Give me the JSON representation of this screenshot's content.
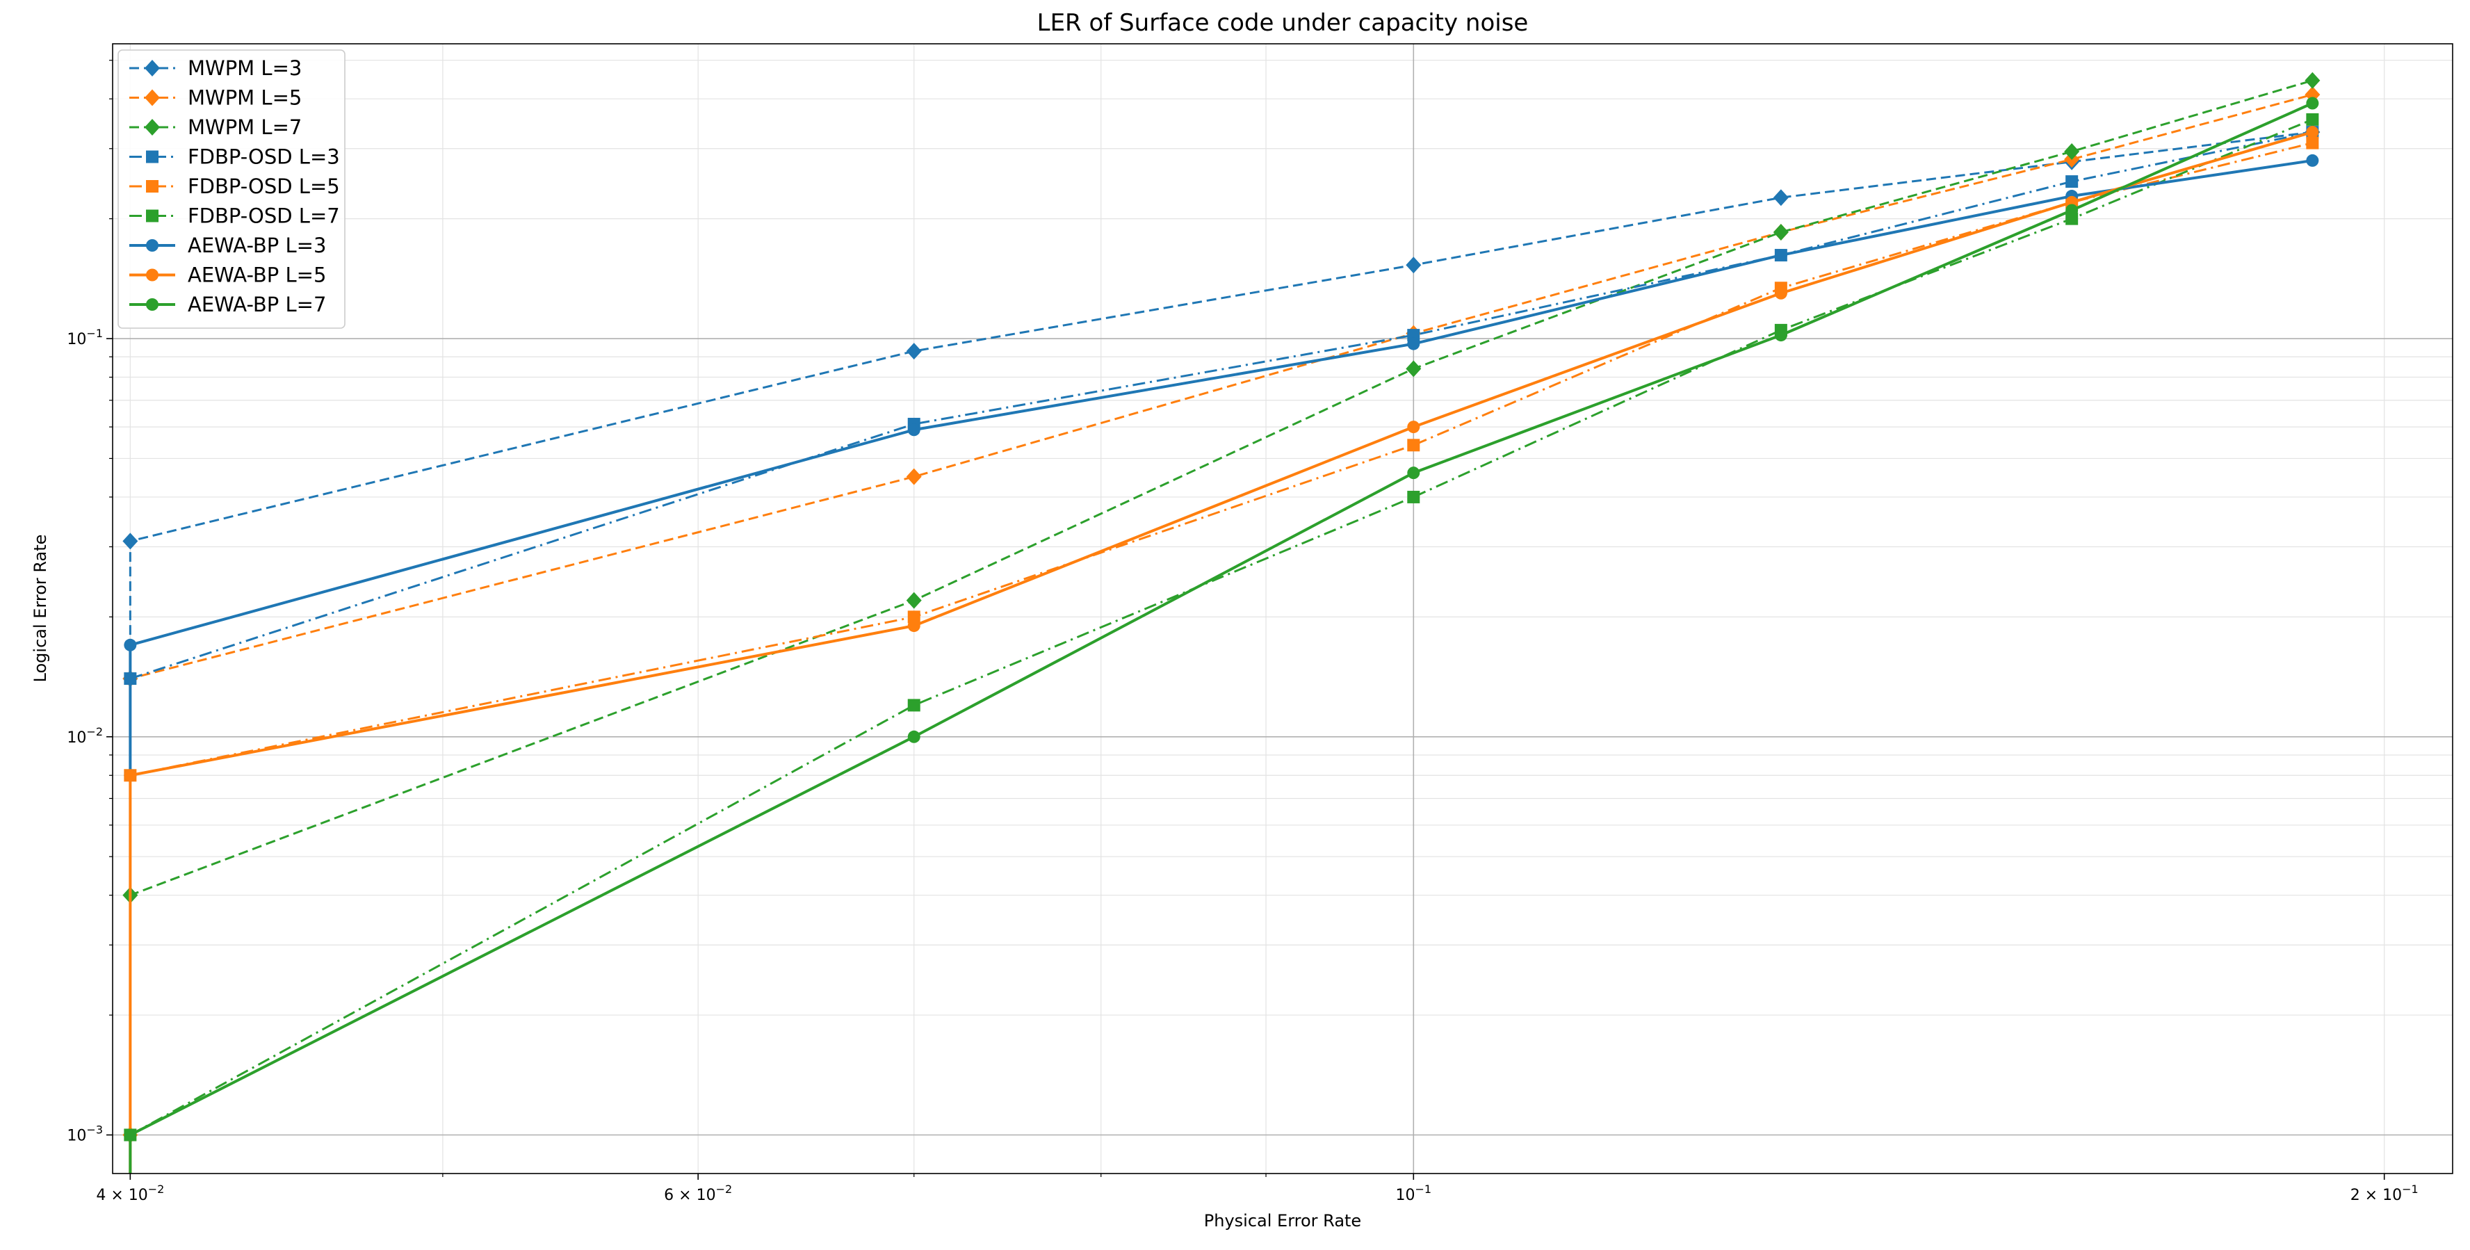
{
  "chart_data": {
    "type": "line",
    "title": "LER of Surface code under capacity noise",
    "xlabel": "Physical Error Rate",
    "ylabel": "Logical Error Rate",
    "xscale": "log",
    "yscale": "log",
    "xlim": [
      0.0395,
      0.21
    ],
    "ylim": [
      0.0008,
      0.55
    ],
    "grid": true,
    "legend_position": "top-left",
    "x_ticks": [
      {
        "value": 0.04,
        "label": "4 × 10",
        "exp": "−2"
      },
      {
        "value": 0.06,
        "label": "6 × 10",
        "exp": "−2"
      },
      {
        "value": 0.1,
        "label": "10",
        "exp": "−1"
      },
      {
        "value": 0.2,
        "label": "2 × 10",
        "exp": "−1"
      }
    ],
    "y_ticks": [
      {
        "value": 0.001,
        "label": "10",
        "exp": "−3"
      },
      {
        "value": 0.01,
        "label": "10",
        "exp": "−2"
      },
      {
        "value": 0.1,
        "label": "10",
        "exp": "−1"
      }
    ],
    "series": [
      {
        "name": "MWPM L=3",
        "color": "#1f77b4",
        "style": "dashed",
        "marker": "diamond",
        "x": [
          0.04,
          0.04,
          0.07,
          0.1,
          0.13,
          0.16,
          0.19
        ],
        "y": [
          0.014,
          0.031,
          0.093,
          0.153,
          0.226,
          0.278,
          0.33
        ]
      },
      {
        "name": "MWPM L=5",
        "color": "#ff7f0e",
        "style": "dashed",
        "marker": "diamond",
        "x": [
          0.04,
          0.04,
          0.07,
          0.1,
          0.13,
          0.16,
          0.19
        ],
        "y": [
          0.001,
          0.014,
          0.045,
          0.103,
          0.185,
          0.282,
          0.41
        ]
      },
      {
        "name": "MWPM L=7",
        "color": "#2ca02c",
        "style": "dashed",
        "marker": "diamond",
        "x": [
          0.04,
          0.04,
          0.07,
          0.1,
          0.13,
          0.16,
          0.19
        ],
        "y": [
          0.0007,
          0.004,
          0.022,
          0.084,
          0.185,
          0.295,
          0.445
        ]
      },
      {
        "name": "FDBP-OSD L=3",
        "color": "#1f77b4",
        "style": "dashdot",
        "marker": "square",
        "x": [
          0.04,
          0.07,
          0.1,
          0.13,
          0.16,
          0.19
        ],
        "y": [
          0.014,
          0.061,
          0.102,
          0.162,
          0.248,
          0.33
        ]
      },
      {
        "name": "FDBP-OSD L=5",
        "color": "#ff7f0e",
        "style": "dashdot",
        "marker": "square",
        "x": [
          0.04,
          0.04,
          0.07,
          0.1,
          0.13,
          0.16,
          0.19
        ],
        "y": [
          0.0007,
          0.008,
          0.02,
          0.054,
          0.134,
          0.22,
          0.31
        ]
      },
      {
        "name": "FDBP-OSD L=7",
        "color": "#2ca02c",
        "style": "dashdot",
        "marker": "square",
        "x": [
          0.04,
          0.07,
          0.1,
          0.13,
          0.16,
          0.19
        ],
        "y": [
          0.001,
          0.012,
          0.04,
          0.105,
          0.2,
          0.355
        ]
      },
      {
        "name": "AEWA-BP L=3",
        "color": "#1f77b4",
        "style": "solid",
        "marker": "circle",
        "x": [
          0.04,
          0.04,
          0.04,
          0.07,
          0.1,
          0.13,
          0.16,
          0.19
        ],
        "y": [
          0.008,
          0.014,
          0.017,
          0.059,
          0.097,
          0.162,
          0.228,
          0.28
        ]
      },
      {
        "name": "AEWA-BP L=5",
        "color": "#ff7f0e",
        "style": "solid",
        "marker": "circle",
        "x": [
          0.04,
          0.04,
          0.07,
          0.1,
          0.13,
          0.16,
          0.19
        ],
        "y": [
          0.0007,
          0.008,
          0.019,
          0.06,
          0.13,
          0.22,
          0.33
        ]
      },
      {
        "name": "AEWA-BP L=7",
        "color": "#2ca02c",
        "style": "solid",
        "marker": "circle",
        "x": [
          0.04,
          0.04,
          0.07,
          0.1,
          0.13,
          0.16,
          0.19
        ],
        "y": [
          0.0007,
          0.001,
          0.01,
          0.046,
          0.102,
          0.21,
          0.39
        ]
      }
    ]
  }
}
